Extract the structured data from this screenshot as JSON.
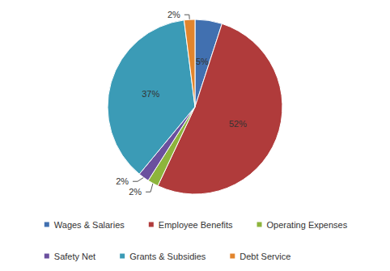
{
  "chart_data": {
    "type": "pie",
    "categories": [
      "Wages & Salaries",
      "Employee Benefits",
      "Operating Expenses",
      "Safety Net",
      "Grants & Subsidies",
      "Debt Service"
    ],
    "values": [
      5,
      52,
      2,
      2,
      37,
      2
    ],
    "value_labels": [
      "5%",
      "52%",
      "2%",
      "2%",
      "37%",
      "2%"
    ],
    "colors": [
      "#4170b0",
      "#b03b3b",
      "#8db43c",
      "#6b509e",
      "#3b9bb6",
      "#e2852d"
    ],
    "data_labels": true,
    "legend": "bottom"
  }
}
